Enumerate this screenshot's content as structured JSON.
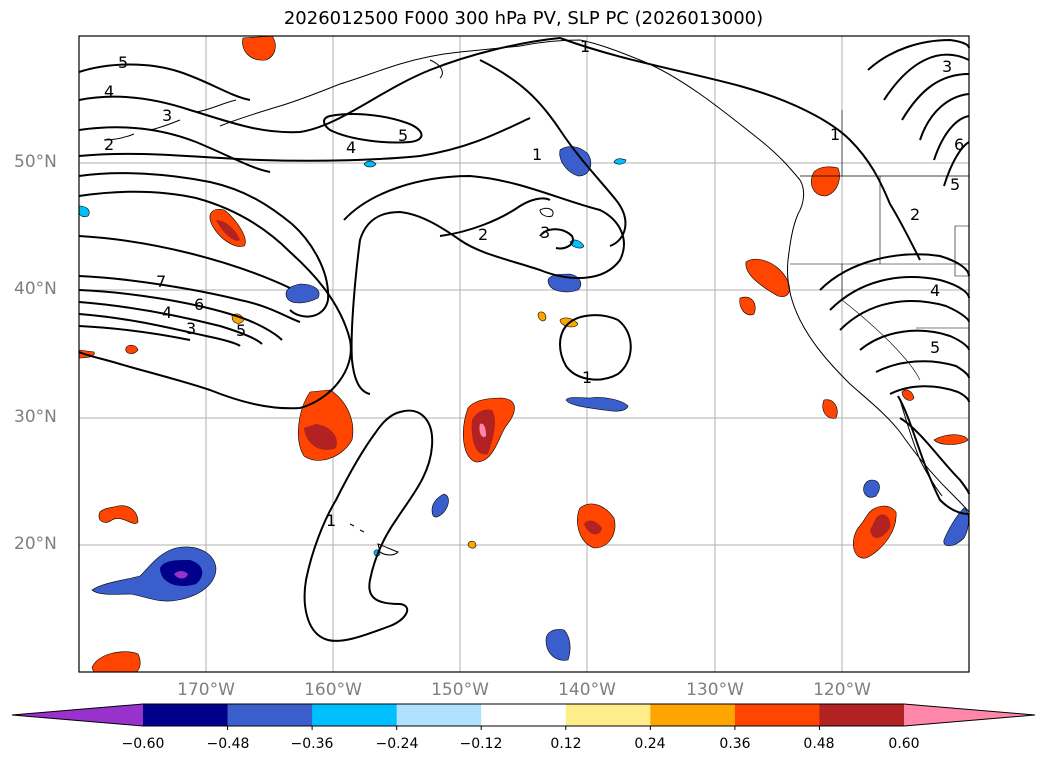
{
  "title": "2026012500 F000 300 hPa PV, SLP PC (2026013000)",
  "map": {
    "lat_labels": [
      "50°N",
      "40°N",
      "30°N",
      "20°N"
    ],
    "lon_labels": [
      "170°W",
      "160°W",
      "150°W",
      "140°W",
      "130°W",
      "120°W"
    ],
    "extent": {
      "lon_min": -180,
      "lon_max": -110,
      "lat_min": 10,
      "lat_max": 60
    },
    "gridlines": true,
    "contour_labels": [
      "5",
      "4",
      "3",
      "2",
      "4",
      "5",
      "1",
      "1",
      "2",
      "3",
      "7",
      "6",
      "4",
      "3",
      "5",
      "1",
      "1",
      "3",
      "6",
      "5",
      "2",
      "4",
      "5",
      "1"
    ]
  },
  "colorbar": {
    "ticks": [
      "−0.60",
      "−0.48",
      "−0.36",
      "−0.24",
      "−0.12",
      "0.12",
      "0.24",
      "0.36",
      "0.48",
      "0.60"
    ],
    "colors": [
      "#9932cc",
      "#00008b",
      "#3a5fcd",
      "#00bfff",
      "#b0e2ff",
      "#ffffff",
      "#ffec8b",
      "#ffa500",
      "#ff4500",
      "#b22222",
      "#ff88aa"
    ],
    "extend": "both"
  }
}
